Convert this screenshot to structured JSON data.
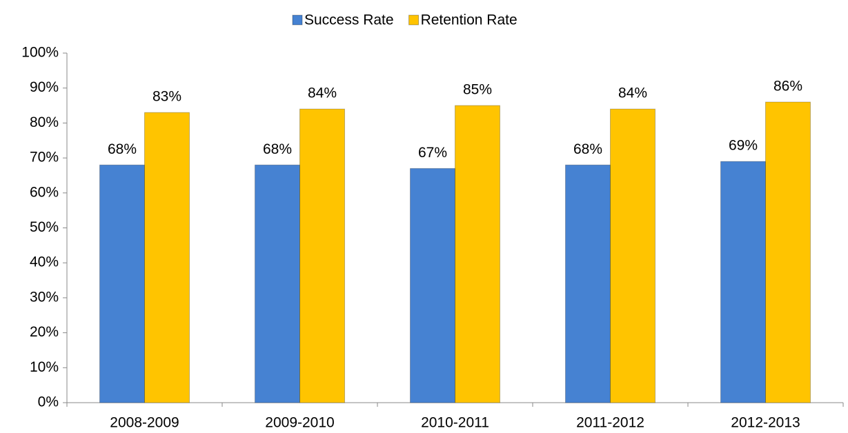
{
  "chart_data": {
    "type": "bar",
    "categories": [
      "2008-2009",
      "2009-2010",
      "2010-2011",
      "2011-2012",
      "2012-2013"
    ],
    "series": [
      {
        "name": "Success Rate",
        "color": "#4682d2",
        "values": [
          68,
          68,
          67,
          68,
          69
        ],
        "value_labels": [
          "68%",
          "68%",
          "67%",
          "68%",
          "69%"
        ]
      },
      {
        "name": "Retention Rate",
        "color": "#ffc400",
        "values": [
          83,
          84,
          85,
          84,
          86
        ],
        "value_labels": [
          "83%",
          "84%",
          "85%",
          "84%",
          "86%"
        ]
      }
    ],
    "ylim": [
      0,
      100
    ],
    "yticks": [
      {
        "value": 0,
        "label": "0%"
      },
      {
        "value": 10,
        "label": "10%"
      },
      {
        "value": 20,
        "label": "20%"
      },
      {
        "value": 30,
        "label": "30%"
      },
      {
        "value": 40,
        "label": "40%"
      },
      {
        "value": 50,
        "label": "50%"
      },
      {
        "value": 60,
        "label": "60%"
      },
      {
        "value": 70,
        "label": "70%"
      },
      {
        "value": 80,
        "label": "80%"
      },
      {
        "value": 90,
        "label": "90%"
      },
      {
        "value": 100,
        "label": "100%"
      }
    ],
    "legend": "top",
    "grid": false
  }
}
